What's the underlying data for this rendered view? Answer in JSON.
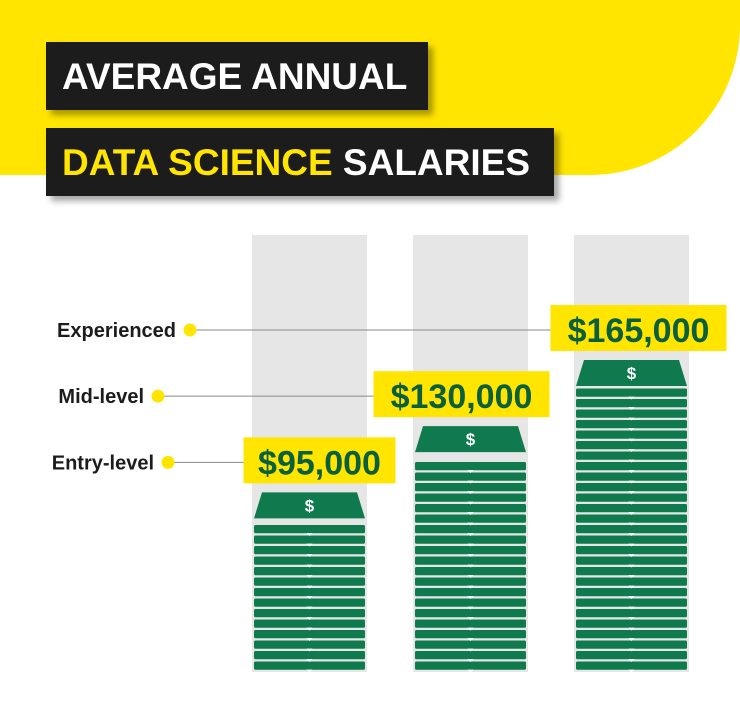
{
  "title": {
    "line1": "AVERAGE ANNUAL",
    "line2_highlight": "DATA SCIENCE",
    "line2_rest": " SALARIES"
  },
  "colors": {
    "background_yellow": "#ffe500",
    "title_box": "#1c1c1c",
    "bill_green": "#0e7a4e",
    "bill_green_dark": "#0a5f3c",
    "column_gray": "#e6e6e6",
    "label_highlight": "#ffe500"
  },
  "chart_data": {
    "type": "bar",
    "title": "AVERAGE ANNUAL DATA SCIENCE SALARIES",
    "categories": [
      "Entry-level",
      "Mid-level",
      "Experienced"
    ],
    "values": [
      95000,
      130000,
      165000
    ],
    "value_labels": [
      "$95,000",
      "$130,000",
      "$165,000"
    ],
    "bill_symbol": "$",
    "ylim": [
      0,
      220000
    ],
    "grid": false,
    "legend": "none"
  }
}
